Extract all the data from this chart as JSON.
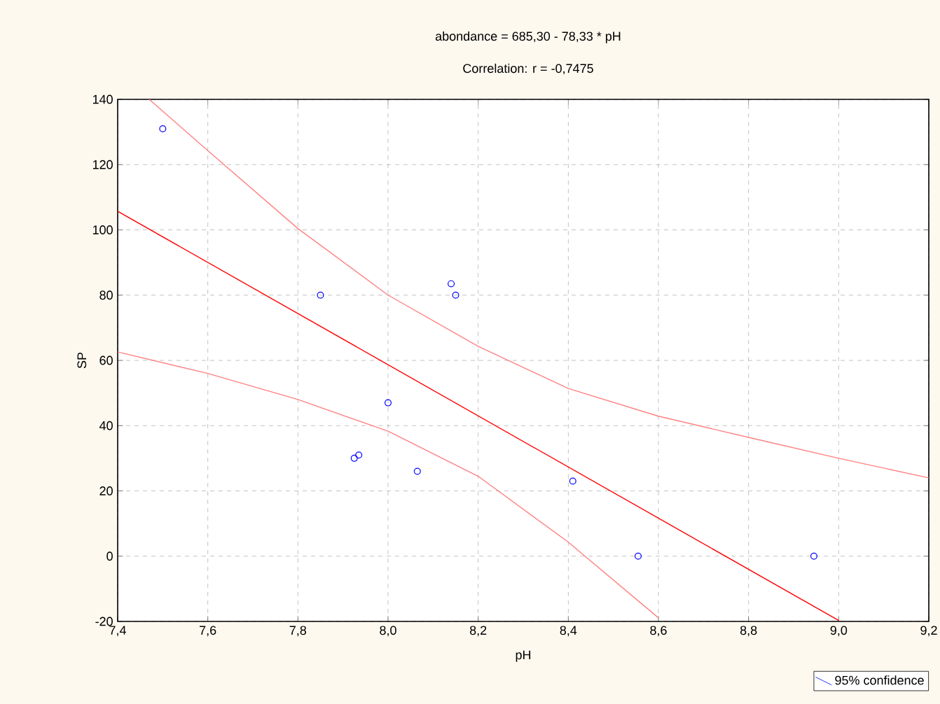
{
  "chart_data": {
    "type": "scatter",
    "title": "abondance = 685,30 - 78,33 * pH",
    "subtitle": "Correlation: r = -0,7475",
    "xlabel": "pH",
    "ylabel": "SP",
    "xlim": [
      7.4,
      9.2
    ],
    "ylim": [
      -20,
      140
    ],
    "xticks": [
      {
        "value": 7.4,
        "label": "7,4"
      },
      {
        "value": 7.6,
        "label": "7,6"
      },
      {
        "value": 7.8,
        "label": "7,8"
      },
      {
        "value": 8.0,
        "label": "8,0"
      },
      {
        "value": 8.2,
        "label": "8,2"
      },
      {
        "value": 8.4,
        "label": "8,4"
      },
      {
        "value": 8.6,
        "label": "8,6"
      },
      {
        "value": 8.8,
        "label": "8,8"
      },
      {
        "value": 9.0,
        "label": "9,0"
      },
      {
        "value": 9.2,
        "label": "9,2"
      }
    ],
    "yticks": [
      -20,
      0,
      20,
      40,
      60,
      80,
      100,
      120,
      140
    ],
    "grid": true,
    "legend": "bottom right",
    "series": [
      {
        "marker": "circle",
        "color": "#0000ff",
        "x": [
          7.5,
          7.85,
          8.0,
          7.925,
          7.935,
          8.065,
          8.14,
          8.15,
          8.41,
          8.555,
          8.945
        ],
        "values": [
          131,
          80,
          47,
          30,
          31,
          26,
          83.5,
          80,
          23,
          0,
          0
        ]
      },
      {
        "type": "line",
        "color": "#ff0000",
        "x": [
          7.4,
          9.0
        ],
        "values": [
          105.7,
          -19.7
        ]
      },
      {
        "type": "line",
        "color": "#ff8080",
        "name": "95% confidence",
        "x": [
          7.47,
          7.6,
          7.8,
          8.0,
          8.2,
          8.4,
          8.6,
          8.8,
          9.0,
          9.2
        ],
        "values": [
          140,
          124.3,
          100.4,
          80,
          64.3,
          51.4,
          42.9,
          36.4,
          30,
          24
        ]
      },
      {
        "type": "line",
        "color": "#ff8080",
        "x": [
          7.4,
          7.6,
          7.8,
          8.0,
          8.2,
          8.4,
          8.6
        ],
        "values": [
          62.6,
          56,
          48,
          38.3,
          24.5,
          4.3,
          -18.9
        ]
      }
    ]
  }
}
